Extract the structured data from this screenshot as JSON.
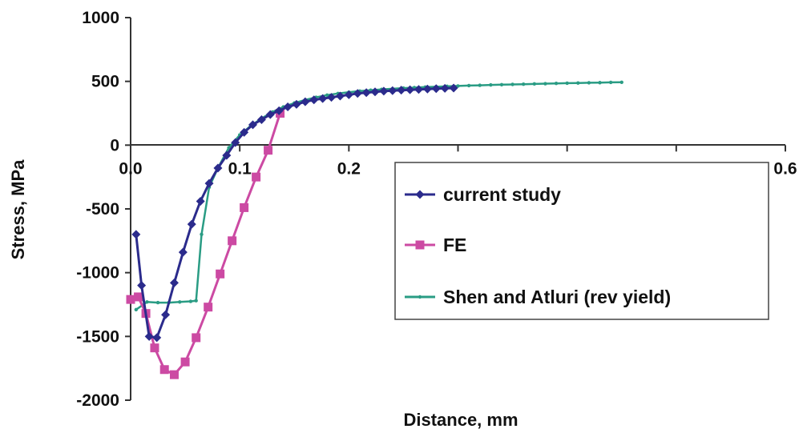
{
  "chart_data": {
    "type": "line",
    "xlabel": "Distance, mm",
    "ylabel": "Stress, MPa",
    "xlim": [
      0,
      0.6
    ],
    "ylim": [
      -2000,
      1000
    ],
    "x_ticks": [
      0,
      0.1,
      0.2,
      0.3,
      0.4,
      0.5,
      0.6
    ],
    "x_tick_labels": [
      "0.0",
      "0.1",
      "0.2",
      "",
      "",
      "",
      "0.6"
    ],
    "y_ticks": [
      1000,
      500,
      0,
      -500,
      -1000,
      -1500,
      -2000
    ],
    "y_tick_labels": [
      "1000",
      "500",
      "0",
      "-500",
      "-1000",
      "-1500",
      "-2000"
    ],
    "grid": false,
    "legend_position": "center-right",
    "series": [
      {
        "name": "current study",
        "color": "#2b2b8c",
        "marker": "diamond",
        "x": [
          0.005,
          0.01,
          0.017,
          0.024,
          0.032,
          0.04,
          0.048,
          0.056,
          0.064,
          0.072,
          0.08,
          0.088,
          0.096,
          0.104,
          0.112,
          0.12,
          0.128,
          0.136,
          0.144,
          0.152,
          0.16,
          0.168,
          0.176,
          0.184,
          0.192,
          0.2,
          0.208,
          0.216,
          0.224,
          0.232,
          0.24,
          0.248,
          0.256,
          0.264,
          0.272,
          0.28,
          0.288,
          0.296
        ],
        "y": [
          -700,
          -1100,
          -1500,
          -1510,
          -1330,
          -1080,
          -840,
          -620,
          -440,
          -300,
          -180,
          -80,
          20,
          100,
          160,
          200,
          240,
          270,
          300,
          320,
          340,
          355,
          365,
          375,
          385,
          395,
          405,
          412,
          418,
          423,
          427,
          431,
          434,
          437,
          440,
          443,
          445,
          448
        ]
      },
      {
        "name": "FE",
        "color": "#cc4aa3",
        "marker": "square",
        "x": [
          0.0,
          0.007,
          0.014,
          0.022,
          0.031,
          0.04,
          0.05,
          0.06,
          0.071,
          0.082,
          0.093,
          0.104,
          0.115,
          0.126,
          0.137
        ],
        "y": [
          -1210,
          -1190,
          -1320,
          -1590,
          -1760,
          -1800,
          -1700,
          -1510,
          -1270,
          -1010,
          -750,
          -490,
          -250,
          -40,
          250
        ]
      },
      {
        "name": "Shen and Atluri (rev yield)",
        "color": "#2a9c84",
        "marker": "dot",
        "x": [
          0.005,
          0.015,
          0.025,
          0.035,
          0.045,
          0.055,
          0.06,
          0.065,
          0.072,
          0.08,
          0.09,
          0.1,
          0.11,
          0.12,
          0.13,
          0.14,
          0.15,
          0.16,
          0.17,
          0.18,
          0.19,
          0.2,
          0.21,
          0.22,
          0.23,
          0.24,
          0.25,
          0.26,
          0.27,
          0.28,
          0.29,
          0.3,
          0.31,
          0.32,
          0.33,
          0.34,
          0.35,
          0.36,
          0.37,
          0.38,
          0.39,
          0.4,
          0.41,
          0.42,
          0.43,
          0.44,
          0.45
        ],
        "y": [
          -1290,
          -1230,
          -1235,
          -1235,
          -1230,
          -1225,
          -1220,
          -700,
          -330,
          -180,
          -20,
          80,
          150,
          210,
          260,
          300,
          330,
          355,
          375,
          392,
          405,
          415,
          424,
          431,
          437,
          442,
          447,
          451,
          455,
          458,
          461,
          464,
          467,
          469,
          472,
          474,
          476,
          478,
          480,
          482,
          484,
          486,
          487,
          489,
          490,
          492,
          493
        ]
      }
    ]
  }
}
